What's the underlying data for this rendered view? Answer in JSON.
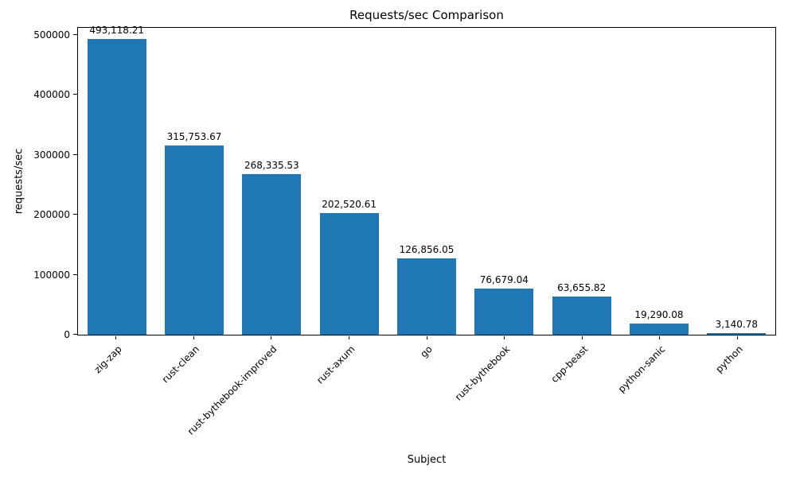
{
  "chart_data": {
    "type": "bar",
    "title": "Requests/sec Comparison",
    "xlabel": "Subject",
    "ylabel": "requests/sec",
    "categories": [
      "zig-zap",
      "rust-clean",
      "rust-bythebook-improved",
      "rust-axum",
      "go",
      "rust-bythebook",
      "cpp-beast",
      "python-sanic",
      "python"
    ],
    "values": [
      493118.21,
      315753.67,
      268335.53,
      202520.61,
      126856.05,
      76679.04,
      63655.82,
      19290.08,
      3140.78
    ],
    "value_labels": [
      "493,118.21",
      "315,753.67",
      "268,335.53",
      "202,520.61",
      "126,856.05",
      "76,679.04",
      "63,655.82",
      "19,290.08",
      "3,140.78"
    ],
    "ylim": [
      0,
      500000
    ],
    "yticks": [
      0,
      100000,
      200000,
      300000,
      400000,
      500000
    ],
    "ytick_labels": [
      "0",
      "100000",
      "200000",
      "300000",
      "400000",
      "500000"
    ],
    "bar_color": "#1f77b4",
    "grid": false,
    "legend_position": "none"
  }
}
